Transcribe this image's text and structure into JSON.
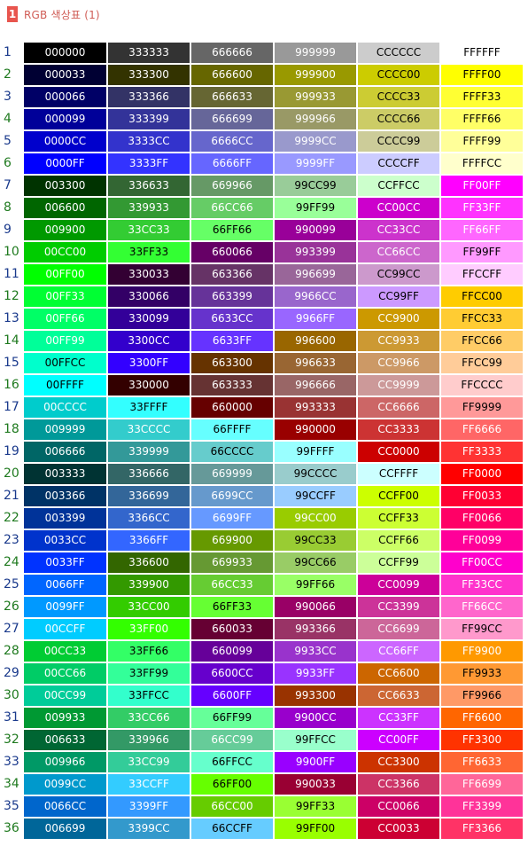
{
  "header": {
    "badge": "1",
    "title": "RGB 색상표 (1)"
  },
  "rows": [
    {
      "n": "1",
      "cells": [
        "000000",
        "333333",
        "666666",
        "999999",
        "CCCCCC",
        "FFFFFF"
      ]
    },
    {
      "n": "2",
      "cells": [
        "000033",
        "333300",
        "666600",
        "999900",
        "CCCC00",
        "FFFF00"
      ]
    },
    {
      "n": "3",
      "cells": [
        "000066",
        "333366",
        "666633",
        "999933",
        "CCCC33",
        "FFFF33"
      ]
    },
    {
      "n": "4",
      "cells": [
        "000099",
        "333399",
        "666699",
        "999966",
        "CCCC66",
        "FFFF66"
      ]
    },
    {
      "n": "5",
      "cells": [
        "0000CC",
        "3333CC",
        "6666CC",
        "9999CC",
        "CCCC99",
        "FFFF99"
      ]
    },
    {
      "n": "6",
      "cells": [
        "0000FF",
        "3333FF",
        "6666FF",
        "9999FF",
        "CCCCFF",
        "FFFFCC"
      ]
    },
    {
      "n": "7",
      "cells": [
        "003300",
        "336633",
        "669966",
        "99CC99",
        "CCFFCC",
        "FF00FF"
      ]
    },
    {
      "n": "8",
      "cells": [
        "006600",
        "339933",
        "66CC66",
        "99FF99",
        "CC00CC",
        "FF33FF"
      ]
    },
    {
      "n": "9",
      "cells": [
        "009900",
        "33CC33",
        "66FF66",
        "990099",
        "CC33CC",
        "FF66FF"
      ]
    },
    {
      "n": "10",
      "cells": [
        "00CC00",
        "33FF33",
        "660066",
        "993399",
        "CC66CC",
        "FF99FF"
      ]
    },
    {
      "n": "11",
      "cells": [
        "00FF00",
        "330033",
        "663366",
        "996699",
        "CC99CC",
        "FFCCFF"
      ]
    },
    {
      "n": "12",
      "cells": [
        "00FF33",
        "330066",
        "663399",
        "9966CC",
        "CC99FF",
        "FFCC00"
      ]
    },
    {
      "n": "13",
      "cells": [
        "00FF66",
        "330099",
        "6633CC",
        "9966FF",
        "CC9900",
        "FFCC33"
      ]
    },
    {
      "n": "14",
      "cells": [
        "00FF99",
        "3300CC",
        "6633FF",
        "996600",
        "CC9933",
        "FFCC66"
      ]
    },
    {
      "n": "15",
      "cells": [
        "00FFCC",
        "3300FF",
        "663300",
        "996633",
        "CC9966",
        "FFCC99"
      ]
    },
    {
      "n": "16",
      "cells": [
        "00FFFF",
        "330000",
        "663333",
        "996666",
        "CC9999",
        "FFCCCC"
      ]
    },
    {
      "n": "17",
      "cells": [
        "00CCCC",
        "33FFFF",
        "660000",
        "993333",
        "CC6666",
        "FF9999"
      ]
    },
    {
      "n": "18",
      "cells": [
        "009999",
        "33CCCC",
        "66FFFF",
        "990000",
        "CC3333",
        "FF6666"
      ]
    },
    {
      "n": "19",
      "cells": [
        "006666",
        "339999",
        "66CCCC",
        "99FFFF",
        "CC0000",
        "FF3333"
      ]
    },
    {
      "n": "20",
      "cells": [
        "003333",
        "336666",
        "669999",
        "99CCCC",
        "CCFFFF",
        "FF0000"
      ]
    },
    {
      "n": "21",
      "cells": [
        "003366",
        "336699",
        "6699CC",
        "99CCFF",
        "CCFF00",
        "FF0033"
      ]
    },
    {
      "n": "22",
      "cells": [
        "003399",
        "3366CC",
        "6699FF",
        "99CC00",
        "CCFF33",
        "FF0066"
      ]
    },
    {
      "n": "23",
      "cells": [
        "0033CC",
        "3366FF",
        "669900",
        "99CC33",
        "CCFF66",
        "FF0099"
      ]
    },
    {
      "n": "24",
      "cells": [
        "0033FF",
        "336600",
        "669933",
        "99CC66",
        "CCFF99",
        "FF00CC"
      ]
    },
    {
      "n": "25",
      "cells": [
        "0066FF",
        "339900",
        "66CC33",
        "99FF66",
        "CC0099",
        "FF33CC"
      ]
    },
    {
      "n": "26",
      "cells": [
        "0099FF",
        "33CC00",
        "66FF33",
        "990066",
        "CC3399",
        "FF66CC"
      ]
    },
    {
      "n": "27",
      "cells": [
        "00CCFF",
        "33FF00",
        "660033",
        "993366",
        "CC6699",
        "FF99CC"
      ]
    },
    {
      "n": "28",
      "cells": [
        "00CC33",
        "33FF66",
        "660099",
        "9933CC",
        "CC66FF",
        "FF9900"
      ]
    },
    {
      "n": "29",
      "cells": [
        "00CC66",
        "33FF99",
        "6600CC",
        "9933FF",
        "CC6600",
        "FF9933"
      ]
    },
    {
      "n": "30",
      "cells": [
        "00CC99",
        "33FFCC",
        "6600FF",
        "993300",
        "CC6633",
        "FF9966"
      ]
    },
    {
      "n": "31",
      "cells": [
        "009933",
        "33CC66",
        "66FF99",
        "9900CC",
        "CC33FF",
        "FF6600"
      ]
    },
    {
      "n": "32",
      "cells": [
        "006633",
        "339966",
        "66CC99",
        "99FFCC",
        "CC00FF",
        "FF3300"
      ]
    },
    {
      "n": "33",
      "cells": [
        "009966",
        "33CC99",
        "66FFCC",
        "9900FF",
        "CC3300",
        "FF6633"
      ]
    },
    {
      "n": "34",
      "cells": [
        "0099CC",
        "33CCFF",
        "66FF00",
        "990033",
        "CC3366",
        "FF6699"
      ]
    },
    {
      "n": "35",
      "cells": [
        "0066CC",
        "3399FF",
        "66CC00",
        "99FF33",
        "CC0066",
        "FF3399"
      ]
    },
    {
      "n": "36",
      "cells": [
        "006699",
        "3399CC",
        "66CCFF",
        "99FF00",
        "CC0033",
        "FF3366"
      ]
    }
  ]
}
